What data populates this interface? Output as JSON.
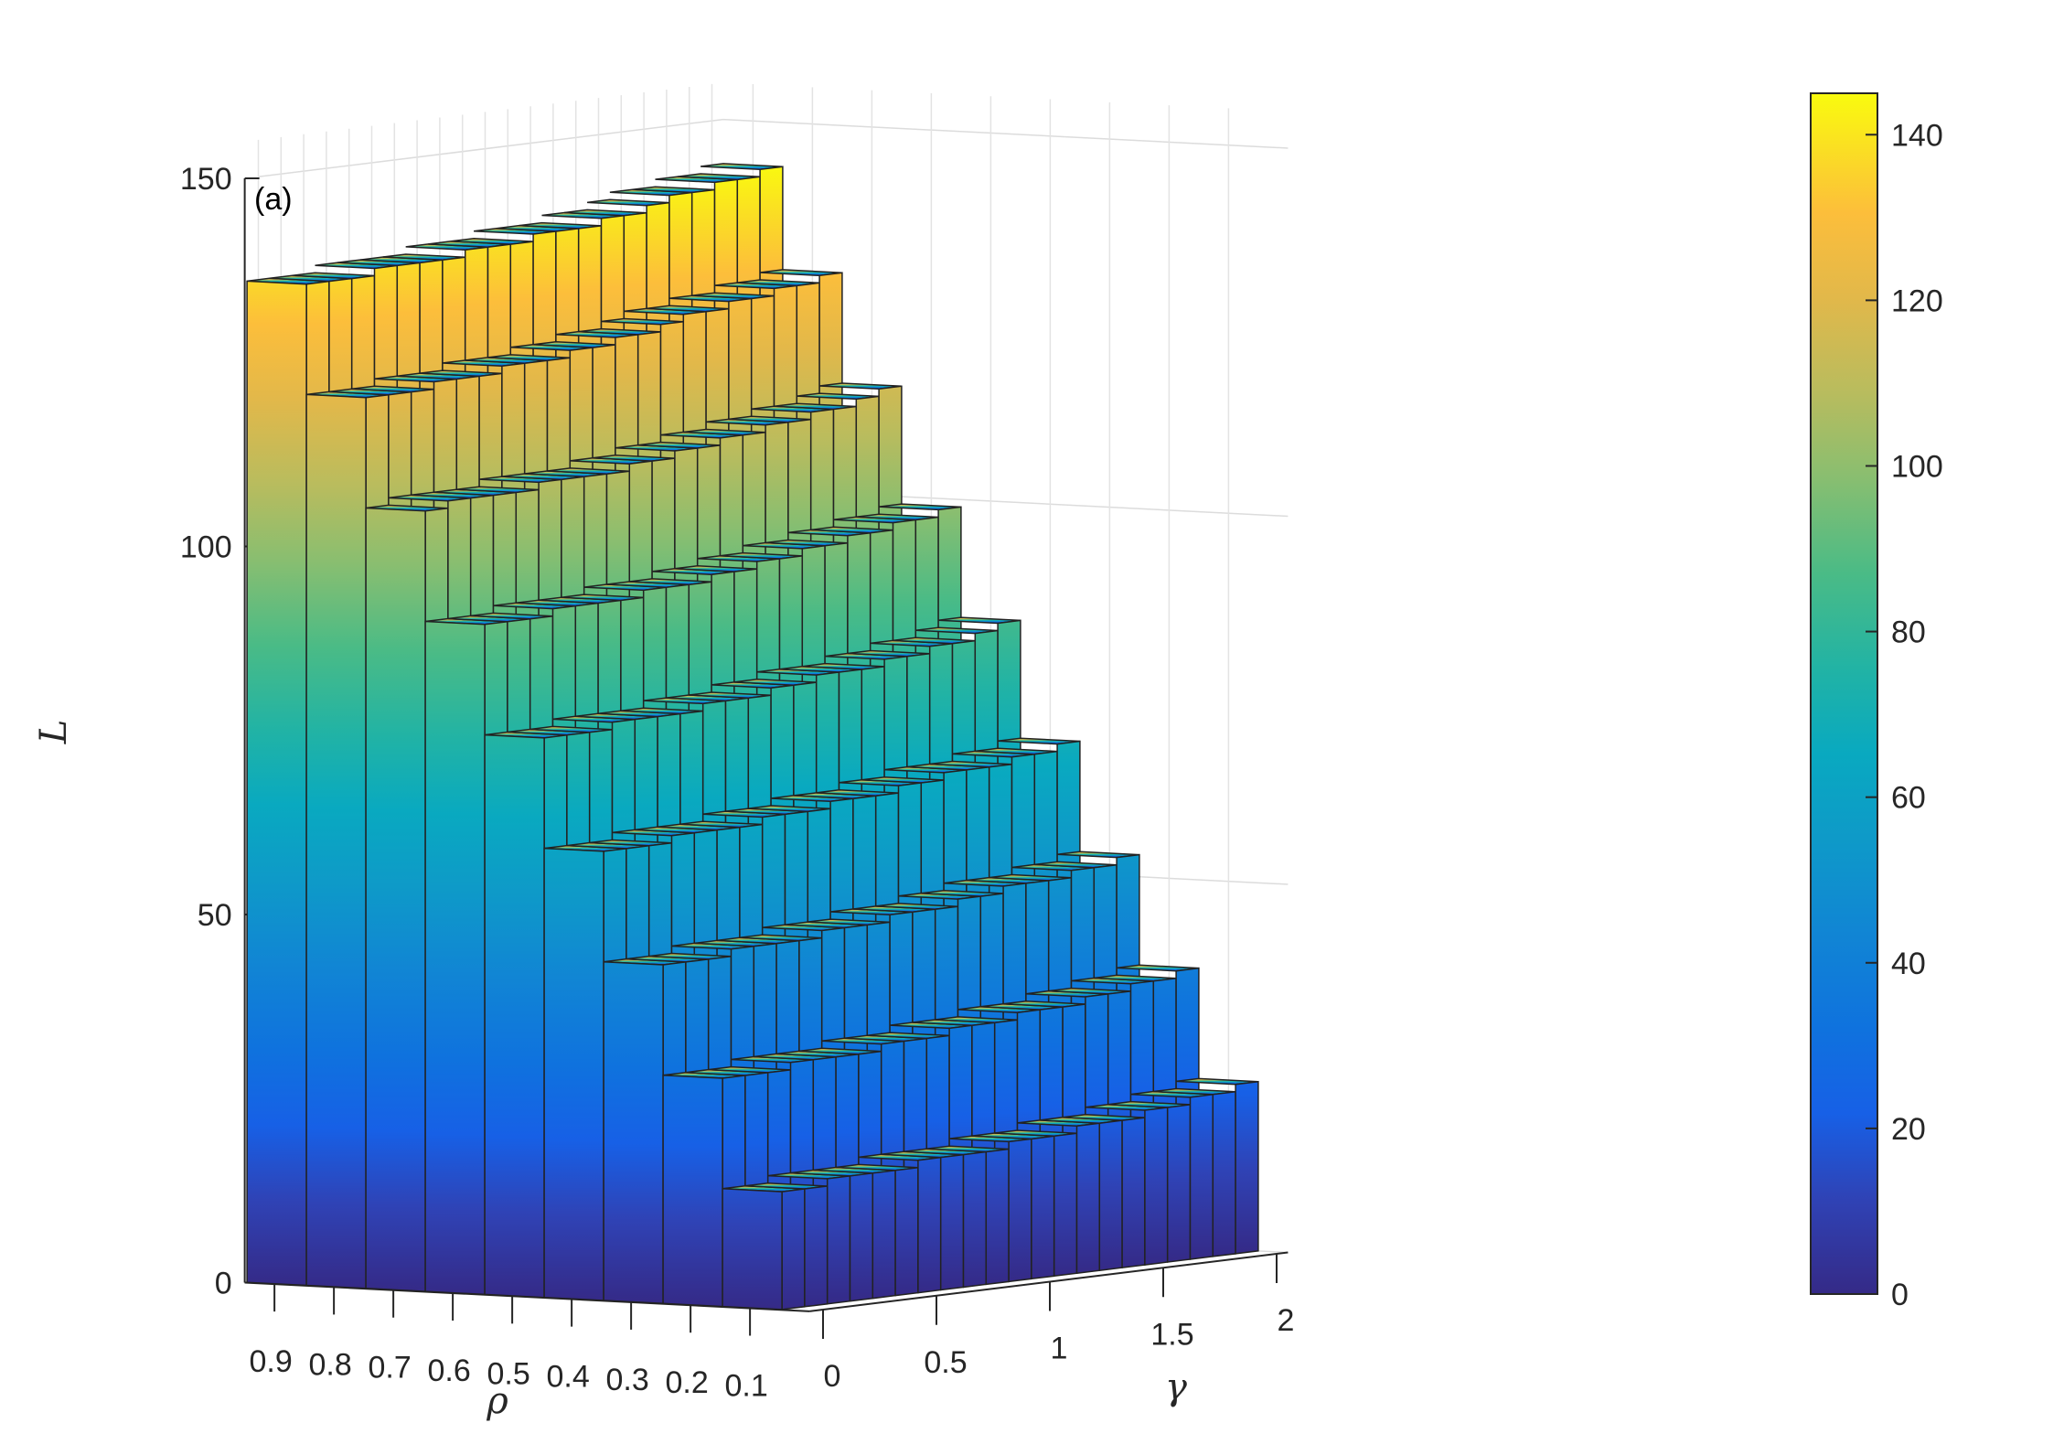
{
  "chart_data": {
    "type": "bar3d",
    "panel_label": "(a)",
    "xlabel": "ρ",
    "ylabel": "γ",
    "zlabel": "L",
    "rho_ticks": [
      "0.9",
      "0.8",
      "0.7",
      "0.6",
      "0.5",
      "0.4",
      "0.3",
      "0.2",
      "0.1"
    ],
    "gamma_ticks": [
      "0",
      "0.5",
      "1",
      "1.5",
      "2"
    ],
    "z_ticks": [
      "0",
      "50",
      "100",
      "150"
    ],
    "zlim": [
      0,
      150
    ],
    "colorbar": {
      "ticks": [
        "0",
        "20",
        "40",
        "60",
        "80",
        "100",
        "120",
        "140"
      ],
      "range": [
        0,
        145
      ],
      "colormap": "parula"
    },
    "rho": [
      0.9,
      0.8,
      0.7,
      0.6,
      0.5,
      0.4,
      0.3,
      0.2,
      0.1
    ],
    "gamma": [
      0,
      0.1,
      0.2,
      0.3,
      0.4,
      0.5,
      0.6,
      0.7,
      0.8,
      0.9,
      1.0,
      1.1,
      1.2,
      1.3,
      1.4,
      1.5,
      1.6,
      1.7,
      1.8,
      1.9,
      2.0
    ],
    "series": [
      {
        "rho": 0.9,
        "values": [
          136,
          136,
          136,
          137,
          137,
          137,
          137,
          138,
          138,
          138,
          139,
          139,
          139,
          140,
          140,
          141,
          142,
          142,
          143,
          143,
          144
        ]
      },
      {
        "rho": 0.8,
        "values": [
          121,
          121,
          121,
          122,
          122,
          122,
          123,
          123,
          123,
          124,
          124,
          125,
          125,
          126,
          127,
          127,
          128,
          128,
          129,
          129,
          130
        ]
      },
      {
        "rho": 0.7,
        "values": [
          106,
          107,
          107,
          107,
          107,
          108,
          108,
          108,
          108,
          109,
          109,
          110,
          110,
          111,
          111,
          112,
          112,
          113,
          113,
          114,
          115
        ]
      },
      {
        "rho": 0.6,
        "values": [
          91,
          91,
          91,
          92,
          92,
          92,
          92,
          93,
          93,
          93,
          94,
          94,
          95,
          95,
          96,
          96,
          97,
          97,
          98,
          98,
          99
        ]
      },
      {
        "rho": 0.5,
        "values": [
          76,
          76,
          76,
          77,
          77,
          77,
          77,
          78,
          78,
          78,
          79,
          79,
          80,
          80,
          80,
          81,
          81,
          82,
          82,
          83,
          84
        ]
      },
      {
        "rho": 0.4,
        "values": [
          61,
          61,
          61,
          62,
          62,
          62,
          62,
          63,
          63,
          63,
          64,
          64,
          64,
          65,
          65,
          66,
          66,
          66,
          67,
          67,
          68
        ]
      },
      {
        "rho": 0.3,
        "values": [
          46,
          46,
          46,
          47,
          47,
          47,
          47,
          48,
          48,
          48,
          49,
          49,
          49,
          50,
          50,
          51,
          51,
          51,
          52,
          52,
          53
        ]
      },
      {
        "rho": 0.2,
        "values": [
          31,
          31,
          31,
          32,
          32,
          32,
          32,
          33,
          33,
          33,
          34,
          34,
          34,
          35,
          35,
          35,
          36,
          36,
          37,
          37,
          38
        ]
      },
      {
        "rho": 0.1,
        "values": [
          16,
          16,
          17,
          17,
          17,
          17,
          18,
          18,
          18,
          18,
          19,
          19,
          19,
          20,
          20,
          20,
          21,
          21,
          22,
          22,
          23
        ]
      }
    ]
  }
}
